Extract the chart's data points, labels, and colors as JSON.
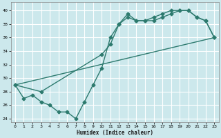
{
  "xlabel": "Humidex (Indice chaleur)",
  "ylabel": "",
  "bg_color": "#cce8ec",
  "grid_color": "#ffffff",
  "line_color": "#2d7a6e",
  "xlim": [
    -0.5,
    23.5
  ],
  "ylim": [
    23.5,
    41.2
  ],
  "xticks": [
    0,
    1,
    2,
    3,
    4,
    5,
    6,
    7,
    8,
    9,
    10,
    11,
    12,
    13,
    14,
    15,
    16,
    17,
    18,
    19,
    20,
    21,
    22,
    23
  ],
  "yticks": [
    24,
    26,
    28,
    30,
    32,
    34,
    36,
    38,
    40
  ],
  "series1_x": [
    0,
    1,
    2,
    3,
    4,
    5,
    6,
    7,
    8,
    9,
    10,
    11,
    12,
    13,
    14,
    15,
    16,
    17,
    18,
    19,
    20,
    21,
    22,
    23
  ],
  "series1_y": [
    29,
    27,
    27.5,
    26.5,
    26,
    25,
    25,
    24,
    26.5,
    29,
    31.5,
    36,
    38,
    39.5,
    38.5,
    38.5,
    38.5,
    39,
    39.5,
    40,
    40,
    39,
    38.5,
    36
  ],
  "series2_x": [
    0,
    3,
    10,
    11,
    12,
    13,
    14,
    15,
    16,
    17,
    18,
    19,
    20,
    21,
    22,
    23
  ],
  "series2_y": [
    29,
    28,
    33.5,
    35,
    38,
    39,
    38.5,
    38.5,
    39,
    39.5,
    40,
    40,
    40,
    39,
    38.5,
    36
  ],
  "series3_x": [
    0,
    23
  ],
  "series3_y": [
    29,
    36
  ],
  "marker_size": 2.5,
  "linewidth": 1.0
}
